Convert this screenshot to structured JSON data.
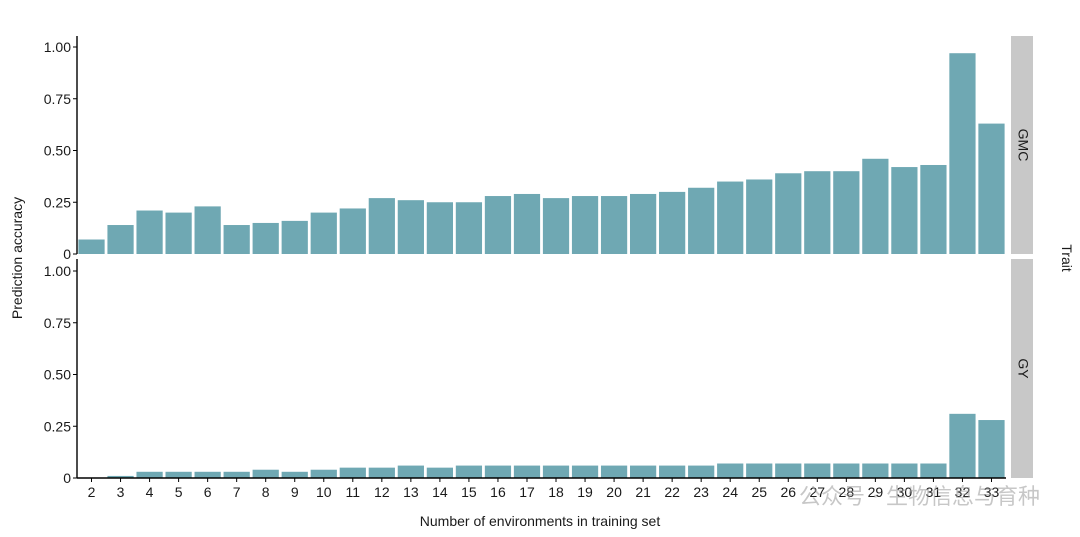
{
  "chart_data": {
    "type": "bar",
    "xlabel": "Number of environments in training set",
    "ylabel": "Prediction accuracy",
    "facet_title": "Trait",
    "categories": [
      "2",
      "3",
      "4",
      "5",
      "6",
      "7",
      "8",
      "9",
      "10",
      "11",
      "12",
      "13",
      "14",
      "15",
      "16",
      "17",
      "18",
      "19",
      "20",
      "21",
      "22",
      "23",
      "24",
      "25",
      "26",
      "27",
      "28",
      "29",
      "30",
      "31",
      "32",
      "33"
    ],
    "ylim": [
      0,
      1.0
    ],
    "yticks": [
      "0",
      "0.25",
      "0.50",
      "0.75",
      "1.00"
    ],
    "ytick_values": [
      0,
      0.25,
      0.5,
      0.75,
      1.0
    ],
    "bar_color": "#6fa8b3",
    "strip_color": "#c8c8c8",
    "grid": false,
    "panels": [
      {
        "name": "GMC",
        "values": [
          0.07,
          0.14,
          0.21,
          0.2,
          0.23,
          0.14,
          0.15,
          0.16,
          0.2,
          0.22,
          0.27,
          0.26,
          0.25,
          0.25,
          0.28,
          0.29,
          0.27,
          0.28,
          0.28,
          0.29,
          0.3,
          0.32,
          0.35,
          0.36,
          0.39,
          0.4,
          0.4,
          0.46,
          0.42,
          0.43,
          0.97,
          0.63
        ]
      },
      {
        "name": "GY",
        "values": [
          0.0,
          0.01,
          0.03,
          0.03,
          0.03,
          0.03,
          0.04,
          0.03,
          0.04,
          0.05,
          0.05,
          0.06,
          0.05,
          0.06,
          0.06,
          0.06,
          0.06,
          0.06,
          0.06,
          0.06,
          0.06,
          0.06,
          0.07,
          0.07,
          0.07,
          0.07,
          0.07,
          0.07,
          0.07,
          0.07,
          0.31,
          0.28
        ]
      }
    ]
  },
  "watermark": "公众号 · 生物信息与育种"
}
